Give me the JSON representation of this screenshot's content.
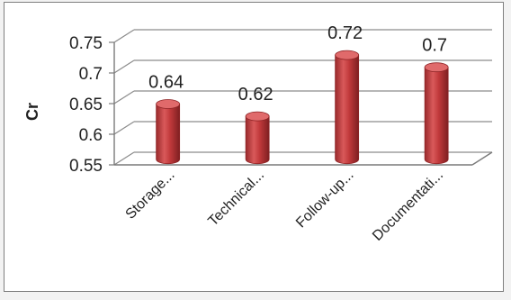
{
  "chart_data": {
    "type": "bar",
    "categories": [
      "Storage...",
      "Technical...",
      "Follow-up...",
      "Documentati..."
    ],
    "values": [
      0.64,
      0.62,
      0.72,
      0.7
    ],
    "data_labels": [
      "0.64",
      "0.62",
      "0.72",
      "0.7"
    ],
    "title": "",
    "xlabel": "",
    "ylabel": "Cr",
    "ylim": [
      0.55,
      0.75
    ],
    "yticks": [
      0.55,
      0.6,
      0.65,
      0.7,
      0.75
    ],
    "ytick_labels": [
      "0.55",
      "0.6",
      "0.65",
      "0.7",
      "0.75"
    ],
    "grid": true,
    "style": "3d-cylinder",
    "colors": {
      "bar": "#c0393b",
      "bar_dark": "#8e2426",
      "bar_light": "#e06a6b",
      "grid": "#8c8c8c"
    }
  }
}
